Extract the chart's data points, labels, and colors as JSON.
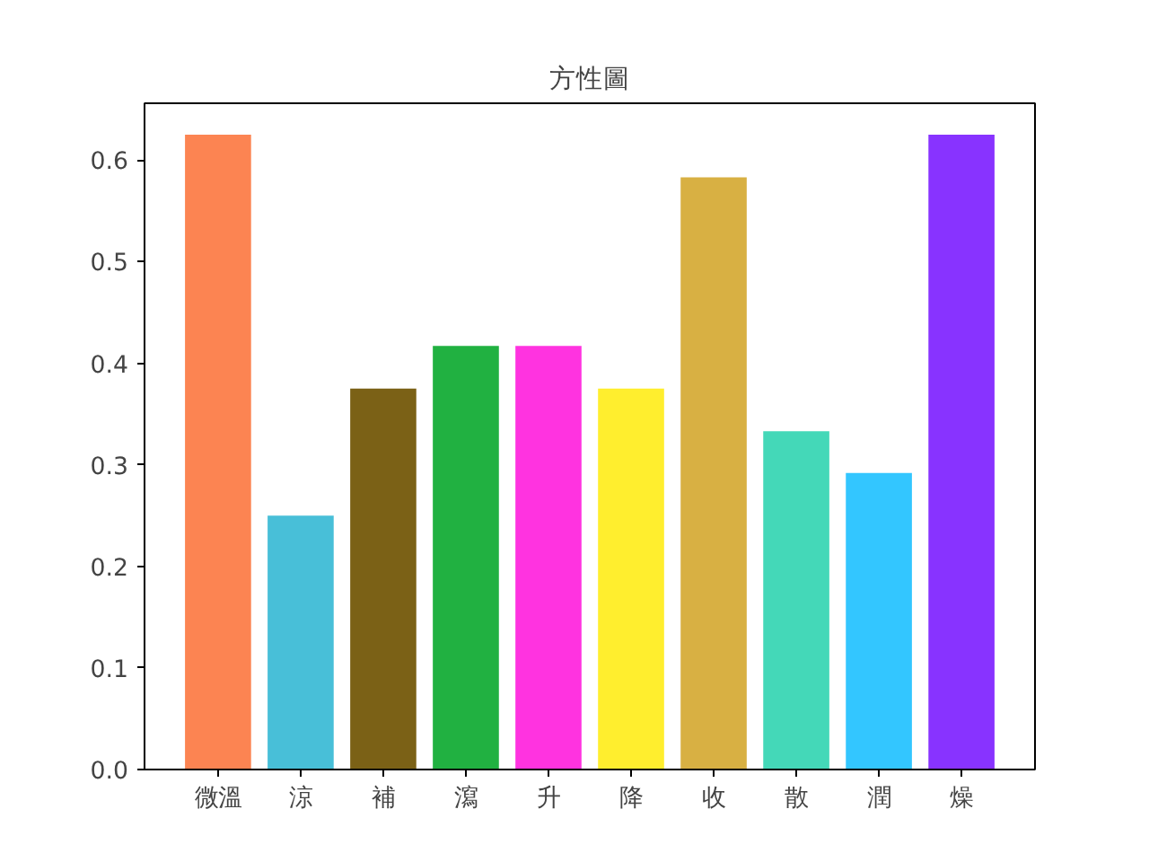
{
  "chart_data": {
    "type": "bar",
    "title": "方性圖",
    "categories": [
      "微溫",
      "涼",
      "補",
      "瀉",
      "升",
      "降",
      "收",
      "散",
      "潤",
      "燥"
    ],
    "values": [
      0.625,
      0.25,
      0.375,
      0.417,
      0.417,
      0.375,
      0.583,
      0.333,
      0.292,
      0.625
    ],
    "colors": [
      "#fc8452",
      "#48bfd8",
      "#7b6116",
      "#21b141",
      "#ff33e0",
      "#ffee2e",
      "#d8b043",
      "#44d8b8",
      "#33c6ff",
      "#8833ff"
    ],
    "ylim": [
      0,
      0.656
    ],
    "yticks": [
      {
        "value": 0,
        "label": "0.0"
      },
      0.1,
      0.2,
      0.3,
      0.4,
      0.5,
      0.6
    ],
    "grid": false
  }
}
